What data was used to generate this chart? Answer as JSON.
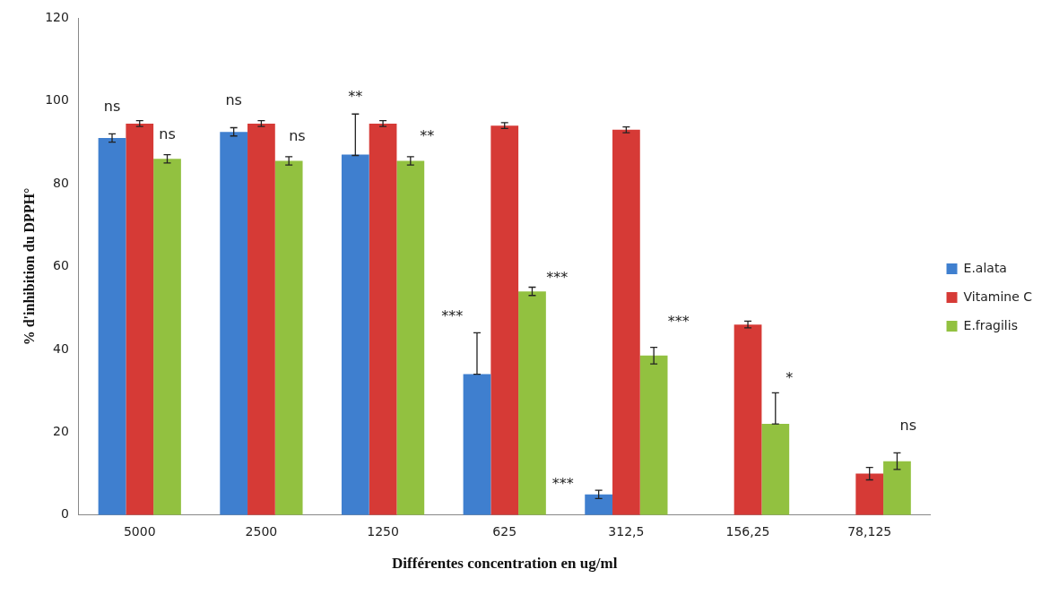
{
  "chart_data": {
    "type": "bar",
    "xlabel": "Différentes concentration en ug/ml",
    "ylabel": "% d'inhibition du DPPH°",
    "categories": [
      "5000",
      "2500",
      "1250",
      "625",
      "312,5",
      "156,25",
      "78,125"
    ],
    "series": [
      {
        "name": "E.alata",
        "color": "#3f7fcf",
        "values": [
          91,
          92.5,
          87,
          34,
          5,
          null,
          null
        ],
        "errors": [
          1,
          1,
          [
            86.8,
            96.8
          ],
          [
            34,
            44
          ],
          1,
          null,
          null
        ]
      },
      {
        "name": "Vitamine C",
        "color": "#d63a36",
        "values": [
          94.5,
          94.5,
          94.5,
          94,
          93,
          46,
          10
        ],
        "errors": [
          0.7,
          0.7,
          0.7,
          0.7,
          0.7,
          0.8,
          1.5
        ]
      },
      {
        "name": "E.fragilis",
        "color": "#92c140",
        "values": [
          86,
          85.5,
          85.5,
          54,
          38.5,
          22,
          13
        ],
        "errors": [
          1,
          1,
          1,
          1,
          2,
          [
            22,
            29.5
          ],
          2
        ]
      }
    ],
    "ylim": [
      0,
      120
    ],
    "yticks": [
      0,
      20,
      40,
      60,
      80,
      100,
      120
    ],
    "grid": false,
    "legend": "right",
    "annotations": [
      "ns",
      "ns",
      "ns",
      "ns",
      "**",
      "**",
      "***",
      "***",
      "***",
      "***",
      "*",
      "ns"
    ]
  }
}
